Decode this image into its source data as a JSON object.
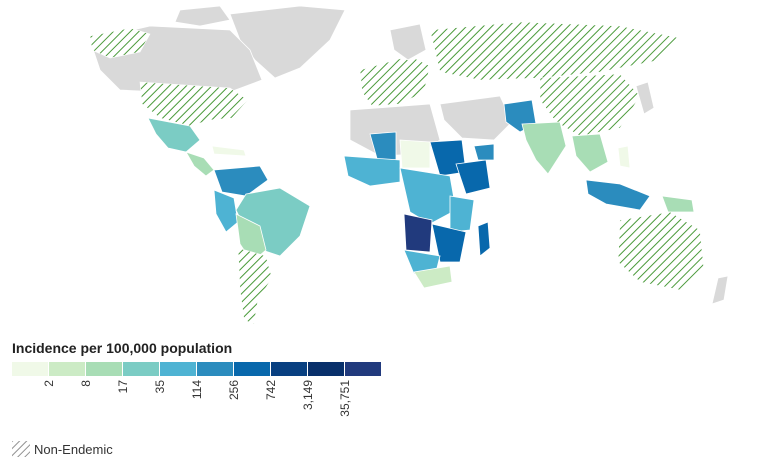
{
  "legend": {
    "title": "Incidence per 100,000 population",
    "colors": [
      "#f0f9e8",
      "#ccebc5",
      "#a8ddb5",
      "#7bccc4",
      "#4eb3d3",
      "#2b8cbe",
      "#0868ac",
      "#084081",
      "#08306b",
      "#213a7d"
    ],
    "ticks": [
      "2",
      "8",
      "17",
      "35",
      "114",
      "256",
      "742",
      "3,149",
      "35,751"
    ],
    "non_endemic_label": "Non-Endemic"
  },
  "map": {
    "base_color": "#d9d9d9",
    "hatch_color": "#4a9a3a",
    "highest_incidence_color": "#213a7d"
  }
}
